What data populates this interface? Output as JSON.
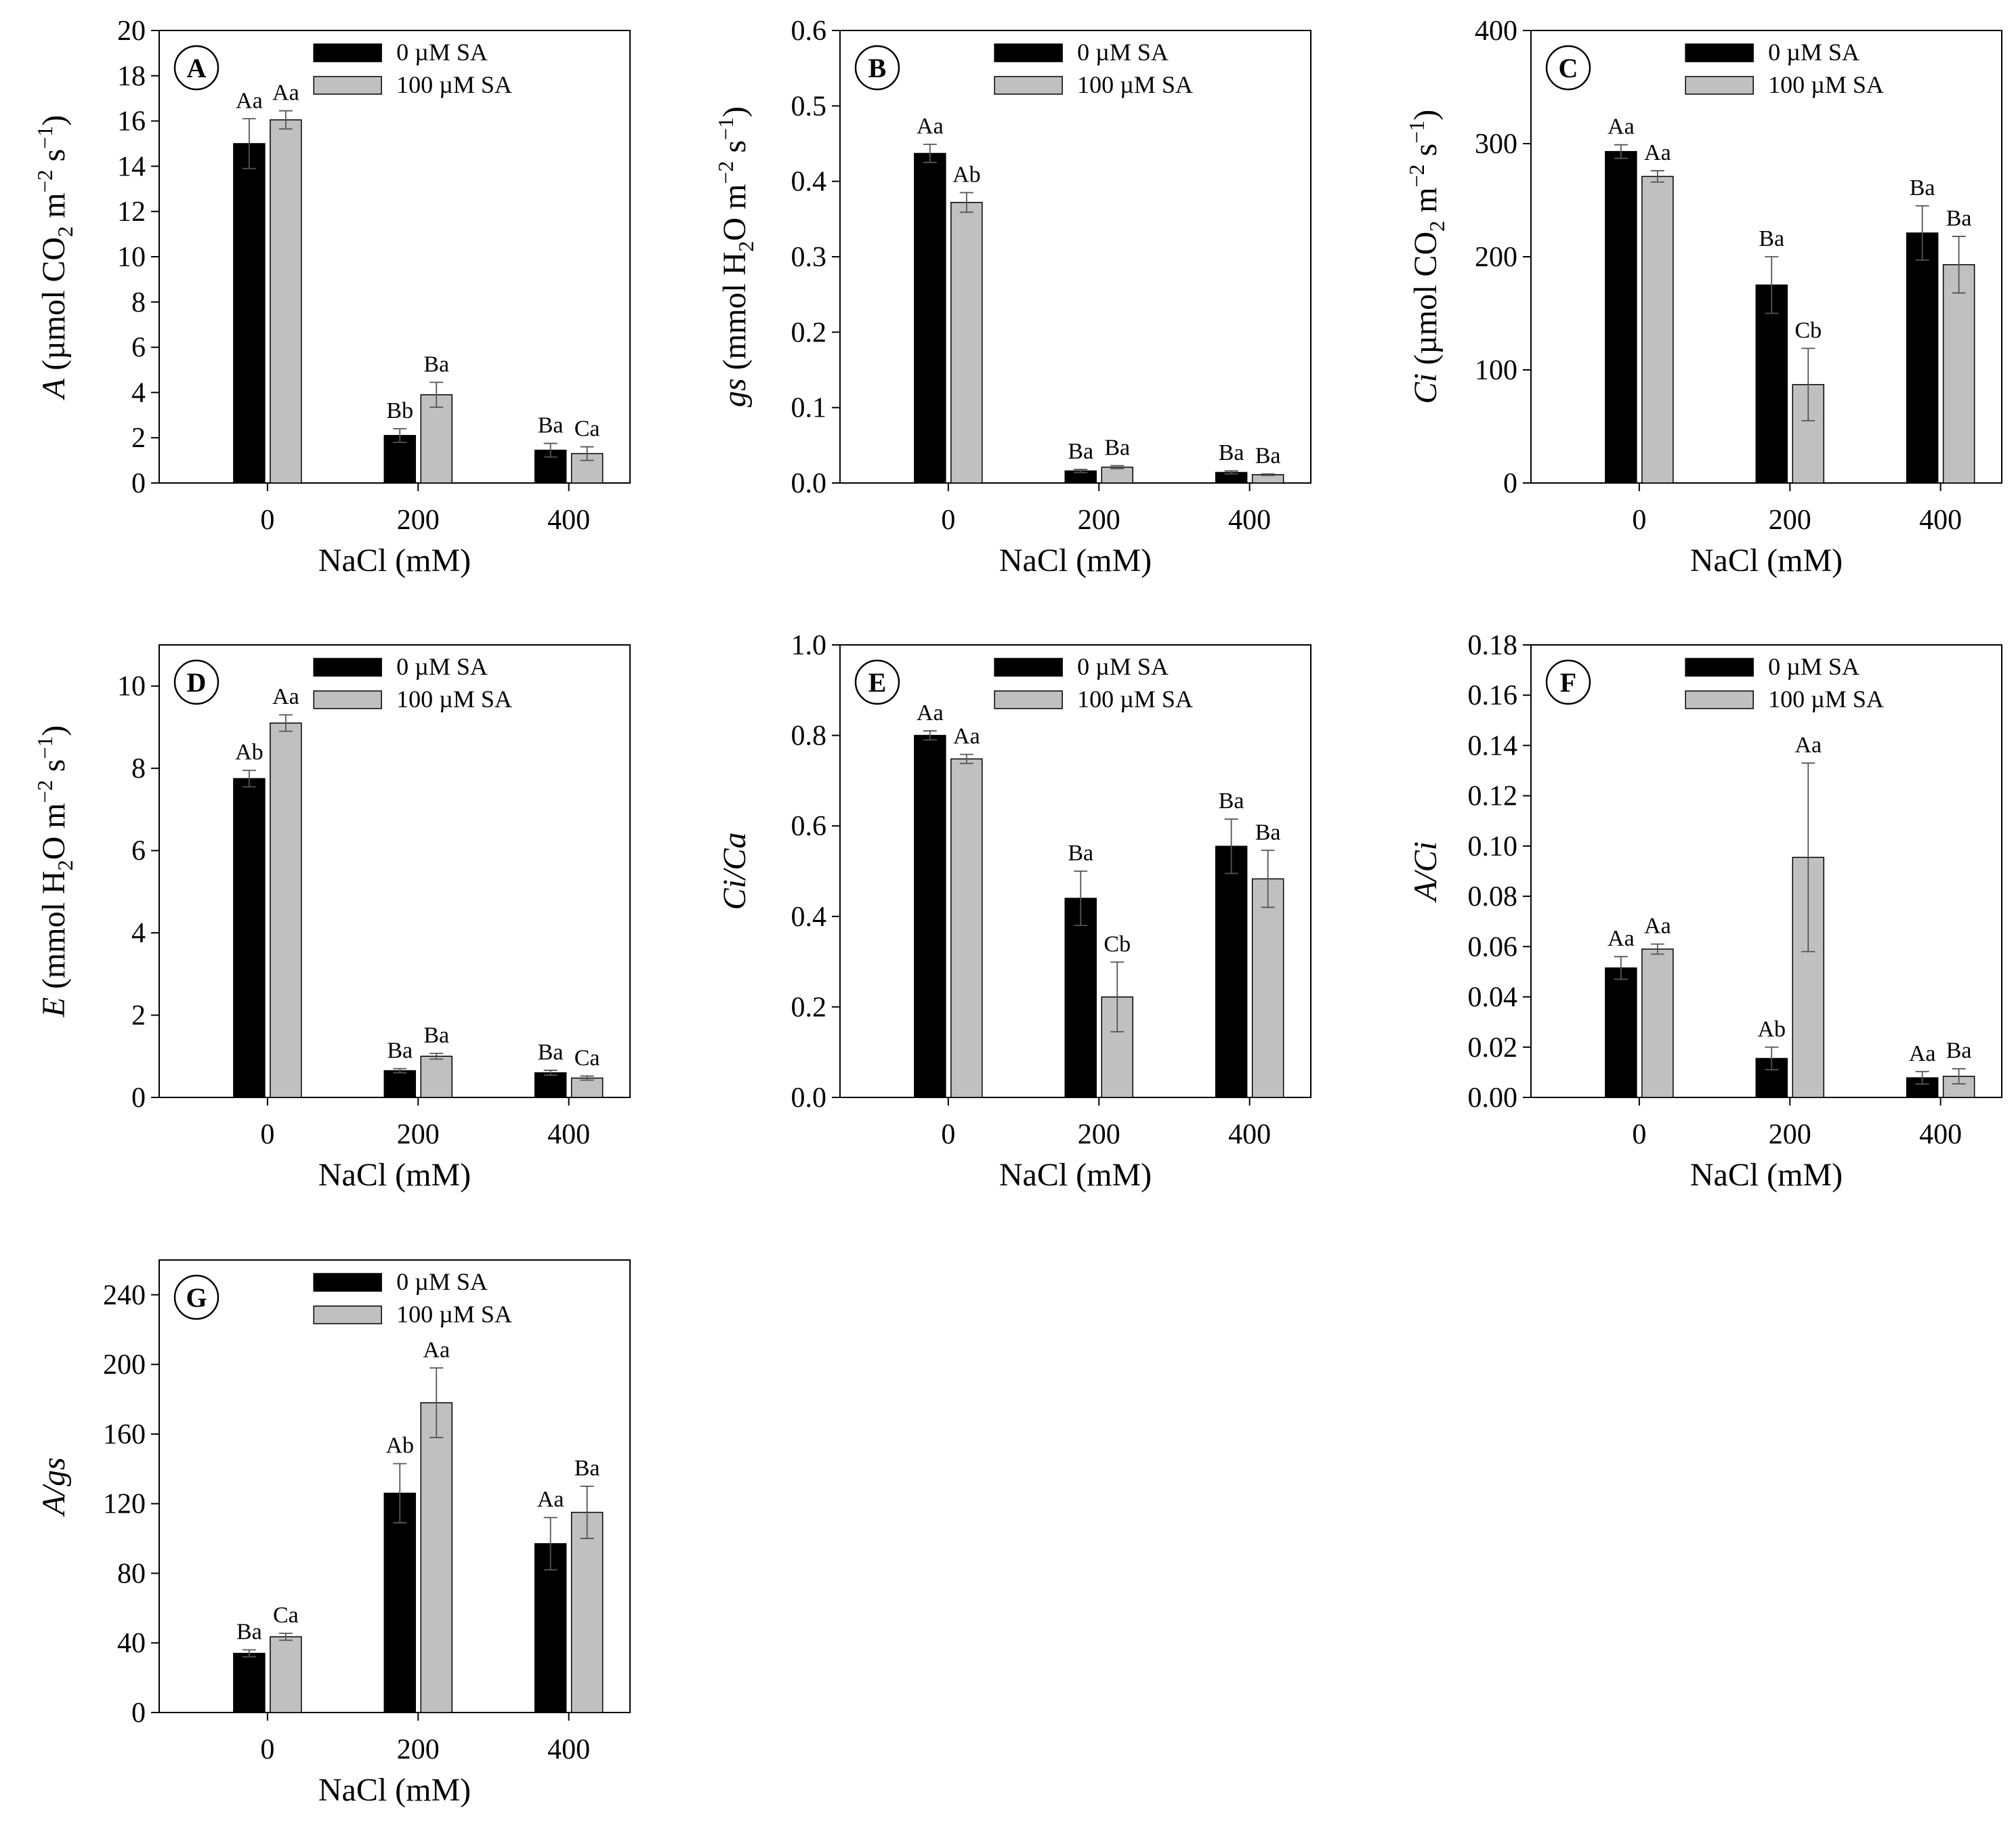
{
  "legend": {
    "series": [
      "0 µM SA",
      "100 µM SA"
    ],
    "colors": [
      "#000000",
      "#c0c0c0"
    ]
  },
  "chart_data": [
    {
      "panel": "A",
      "type": "bar",
      "categories": [
        "0",
        "200",
        "400"
      ],
      "xlabel": "NaCl (mM)",
      "ylabel_parts": [
        "A",
        " (µmol CO",
        "2",
        " m",
        "−2",
        " s",
        "−1",
        ")"
      ],
      "ylim": [
        0,
        20
      ],
      "yticks": [
        "0",
        "2",
        "4",
        "6",
        "8",
        "10",
        "12",
        "14",
        "16",
        "18",
        "20"
      ],
      "series": [
        {
          "name": "0 µM SA",
          "values": [
            15.0,
            2.1,
            1.45
          ],
          "errors": [
            1.1,
            0.3,
            0.3
          ],
          "labels": [
            "Aa",
            "Bb",
            "Ba"
          ]
        },
        {
          "name": "100 µM SA",
          "values": [
            16.05,
            3.9,
            1.3
          ],
          "errors": [
            0.4,
            0.55,
            0.3
          ],
          "labels": [
            "Aa",
            "Ba",
            "Ca"
          ]
        }
      ]
    },
    {
      "panel": "B",
      "type": "bar",
      "categories": [
        "0",
        "200",
        "400"
      ],
      "xlabel": "NaCl (mM)",
      "ylabel_parts": [
        "gs",
        " (mmol H",
        "2",
        "O m",
        "−2",
        " s",
        "−1",
        ")"
      ],
      "ylim": [
        0,
        0.6
      ],
      "yticks": [
        "0.0",
        "0.1",
        "0.2",
        "0.3",
        "0.4",
        "0.5",
        "0.6"
      ],
      "series": [
        {
          "name": "0 µM SA",
          "values": [
            0.437,
            0.016,
            0.014
          ],
          "errors": [
            0.012,
            0.002,
            0.002
          ],
          "labels": [
            "Aa",
            "Ba",
            "Ba"
          ]
        },
        {
          "name": "100 µM SA",
          "values": [
            0.372,
            0.021,
            0.011
          ],
          "errors": [
            0.013,
            0.002,
            0.001
          ],
          "labels": [
            "Ab",
            "Ba",
            "Ba"
          ]
        }
      ]
    },
    {
      "panel": "C",
      "type": "bar",
      "categories": [
        "0",
        "200",
        "400"
      ],
      "xlabel": "NaCl (mM)",
      "ylabel_parts": [
        "Ci",
        " (µmol CO",
        "2",
        "  m",
        "−2",
        " s",
        "−1",
        ")"
      ],
      "ylim": [
        0,
        400
      ],
      "yticks": [
        "0",
        "100",
        "200",
        "300",
        "400"
      ],
      "series": [
        {
          "name": "0 µM SA",
          "values": [
            293,
            175,
            221
          ],
          "errors": [
            6,
            25,
            24
          ],
          "labels": [
            "Aa",
            "Ba",
            "Ba"
          ]
        },
        {
          "name": "100 µM SA",
          "values": [
            271,
            87,
            193
          ],
          "errors": [
            5,
            32,
            25
          ],
          "labels": [
            "Aa",
            "Cb",
            "Ba"
          ]
        }
      ]
    },
    {
      "panel": "D",
      "type": "bar",
      "categories": [
        "0",
        "200",
        "400"
      ],
      "xlabel": "NaCl (mM)",
      "ylabel_parts": [
        "E",
        " (mmol H",
        "2",
        "O m",
        "−2",
        " s",
        "−1",
        ")"
      ],
      "ylim": [
        0,
        11
      ],
      "yticks": [
        "0",
        "2",
        "4",
        "6",
        "8",
        "10"
      ],
      "ytick_values": [
        0,
        2,
        4,
        6,
        8,
        10
      ],
      "series": [
        {
          "name": "0 µM SA",
          "values": [
            7.75,
            0.65,
            0.6
          ],
          "errors": [
            0.2,
            0.05,
            0.06
          ],
          "labels": [
            "Ab",
            "Ba",
            "Ba"
          ]
        },
        {
          "name": "100 µM SA",
          "values": [
            9.1,
            1.0,
            0.47
          ],
          "errors": [
            0.2,
            0.07,
            0.05
          ],
          "labels": [
            "Aa",
            "Ba",
            "Ca"
          ]
        }
      ]
    },
    {
      "panel": "E",
      "type": "bar",
      "categories": [
        "0",
        "200",
        "400"
      ],
      "xlabel": "NaCl (mM)",
      "ylabel_parts": [
        "Ci/Ca",
        "",
        "",
        "",
        "",
        "",
        "",
        ""
      ],
      "ylim": [
        0,
        1.0
      ],
      "yticks": [
        "0.0",
        "0.2",
        "0.4",
        "0.6",
        "0.8",
        "1.0"
      ],
      "series": [
        {
          "name": "0 µM SA",
          "values": [
            0.8,
            0.44,
            0.555
          ],
          "errors": [
            0.01,
            0.06,
            0.06
          ],
          "labels": [
            "Aa",
            "Ba",
            "Ba"
          ]
        },
        {
          "name": "100 µM SA",
          "values": [
            0.748,
            0.222,
            0.483
          ],
          "errors": [
            0.01,
            0.077,
            0.063
          ],
          "labels": [
            "Aa",
            "Cb",
            "Ba"
          ]
        }
      ]
    },
    {
      "panel": "F",
      "type": "bar",
      "categories": [
        "0",
        "200",
        "400"
      ],
      "xlabel": "NaCl (mM)",
      "ylabel_parts": [
        "A/Ci",
        "",
        "",
        "",
        "",
        "",
        "",
        ""
      ],
      "ylim": [
        0,
        0.18
      ],
      "yticks": [
        "0.00",
        "0.02",
        "0.04",
        "0.06",
        "0.08",
        "0.10",
        "0.12",
        "0.14",
        "0.16",
        "0.18"
      ],
      "series": [
        {
          "name": "0 µM SA",
          "values": [
            0.0515,
            0.0155,
            0.0078
          ],
          "errors": [
            0.0045,
            0.0045,
            0.0025
          ],
          "labels": [
            "Aa",
            "Ab",
            "Aa"
          ]
        },
        {
          "name": "100 µM SA",
          "values": [
            0.059,
            0.0955,
            0.0084
          ],
          "errors": [
            0.002,
            0.0375,
            0.003
          ],
          "labels": [
            "Aa",
            "Aa",
            "Ba"
          ]
        }
      ]
    },
    {
      "panel": "G",
      "type": "bar",
      "categories": [
        "0",
        "200",
        "400"
      ],
      "xlabel": "NaCl (mM)",
      "ylabel_parts": [
        "A/gs",
        "",
        "",
        "",
        "",
        "",
        "",
        ""
      ],
      "ylim": [
        0,
        260
      ],
      "yticks": [
        "0",
        "40",
        "80",
        "120",
        "160",
        "200",
        "240"
      ],
      "ytick_values": [
        0,
        40,
        80,
        120,
        160,
        200,
        240
      ],
      "series": [
        {
          "name": "0 µM SA",
          "values": [
            34,
            126,
            97
          ],
          "errors": [
            2,
            17,
            15
          ],
          "labels": [
            "Ba",
            "Ab",
            "Aa"
          ]
        },
        {
          "name": "100 µM SA",
          "values": [
            43.5,
            178,
            115
          ],
          "errors": [
            2,
            20,
            15
          ],
          "labels": [
            "Ca",
            "Aa",
            "Ba"
          ]
        }
      ]
    }
  ]
}
